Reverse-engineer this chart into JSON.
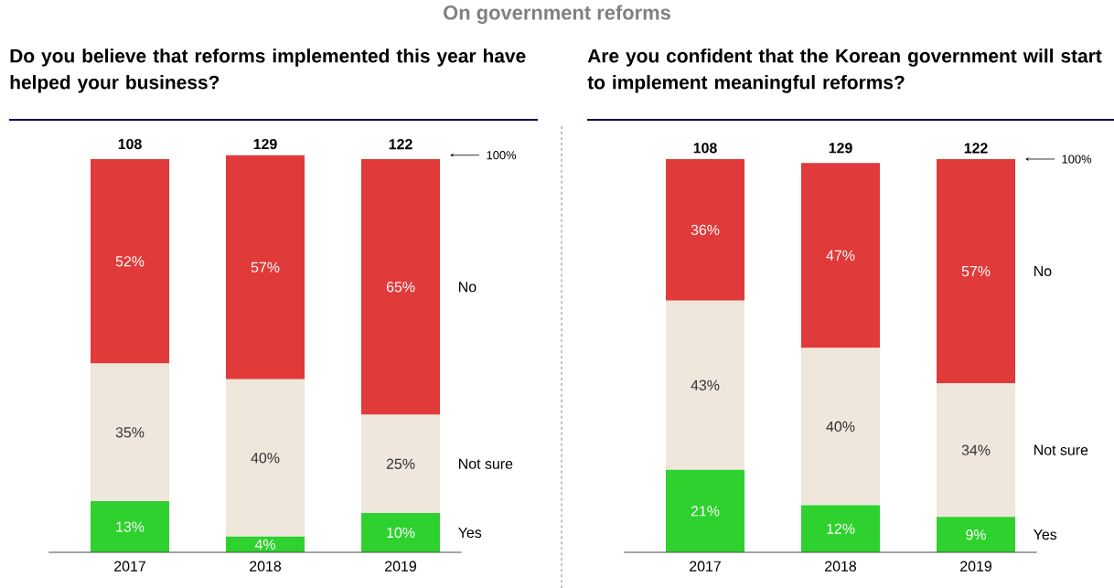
{
  "chart_data": [
    {
      "type": "bar",
      "stacked": true,
      "title": "Do you believe that reforms implemented this year have helped your business?",
      "annotations": [
        "On government reforms",
        "108",
        "129",
        "122",
        "100%"
      ],
      "categories": [
        "2017",
        "2018",
        "2019"
      ],
      "series": [
        {
          "name": "Yes",
          "color": "#2ed12e",
          "values": [
            13,
            4,
            10
          ],
          "value_labels": [
            "13%",
            "4%",
            "10%"
          ]
        },
        {
          "name": "Not sure",
          "color": "#efe6dc",
          "values": [
            35,
            40,
            25
          ],
          "value_labels": [
            "35%",
            "40%",
            "25%"
          ]
        },
        {
          "name": "No",
          "color": "#e03a3a",
          "values": [
            52,
            57,
            65
          ],
          "value_labels": [
            "52%",
            "57%",
            "65%"
          ]
        }
      ]
    },
    {
      "type": "bar",
      "stacked": true,
      "title": "Are you confident that the Korean government will start to implement meaningful reforms?",
      "annotations": [
        "108",
        "129",
        "122",
        "100%"
      ],
      "categories": [
        "2017",
        "2018",
        "2019"
      ],
      "series": [
        {
          "name": "Yes",
          "color": "#2ed12e",
          "values": [
            21,
            12,
            9
          ],
          "value_labels": [
            "21%",
            "12%",
            "9%"
          ]
        },
        {
          "name": "Not sure",
          "color": "#efe6dc",
          "values": [
            43,
            40,
            34
          ],
          "value_labels": [
            "43%",
            "40%",
            "34%"
          ]
        },
        {
          "name": "No",
          "color": "#e03a3a",
          "values": [
            36,
            47,
            57
          ],
          "value_labels": [
            "36%",
            "47%",
            "57%"
          ]
        }
      ]
    }
  ]
}
